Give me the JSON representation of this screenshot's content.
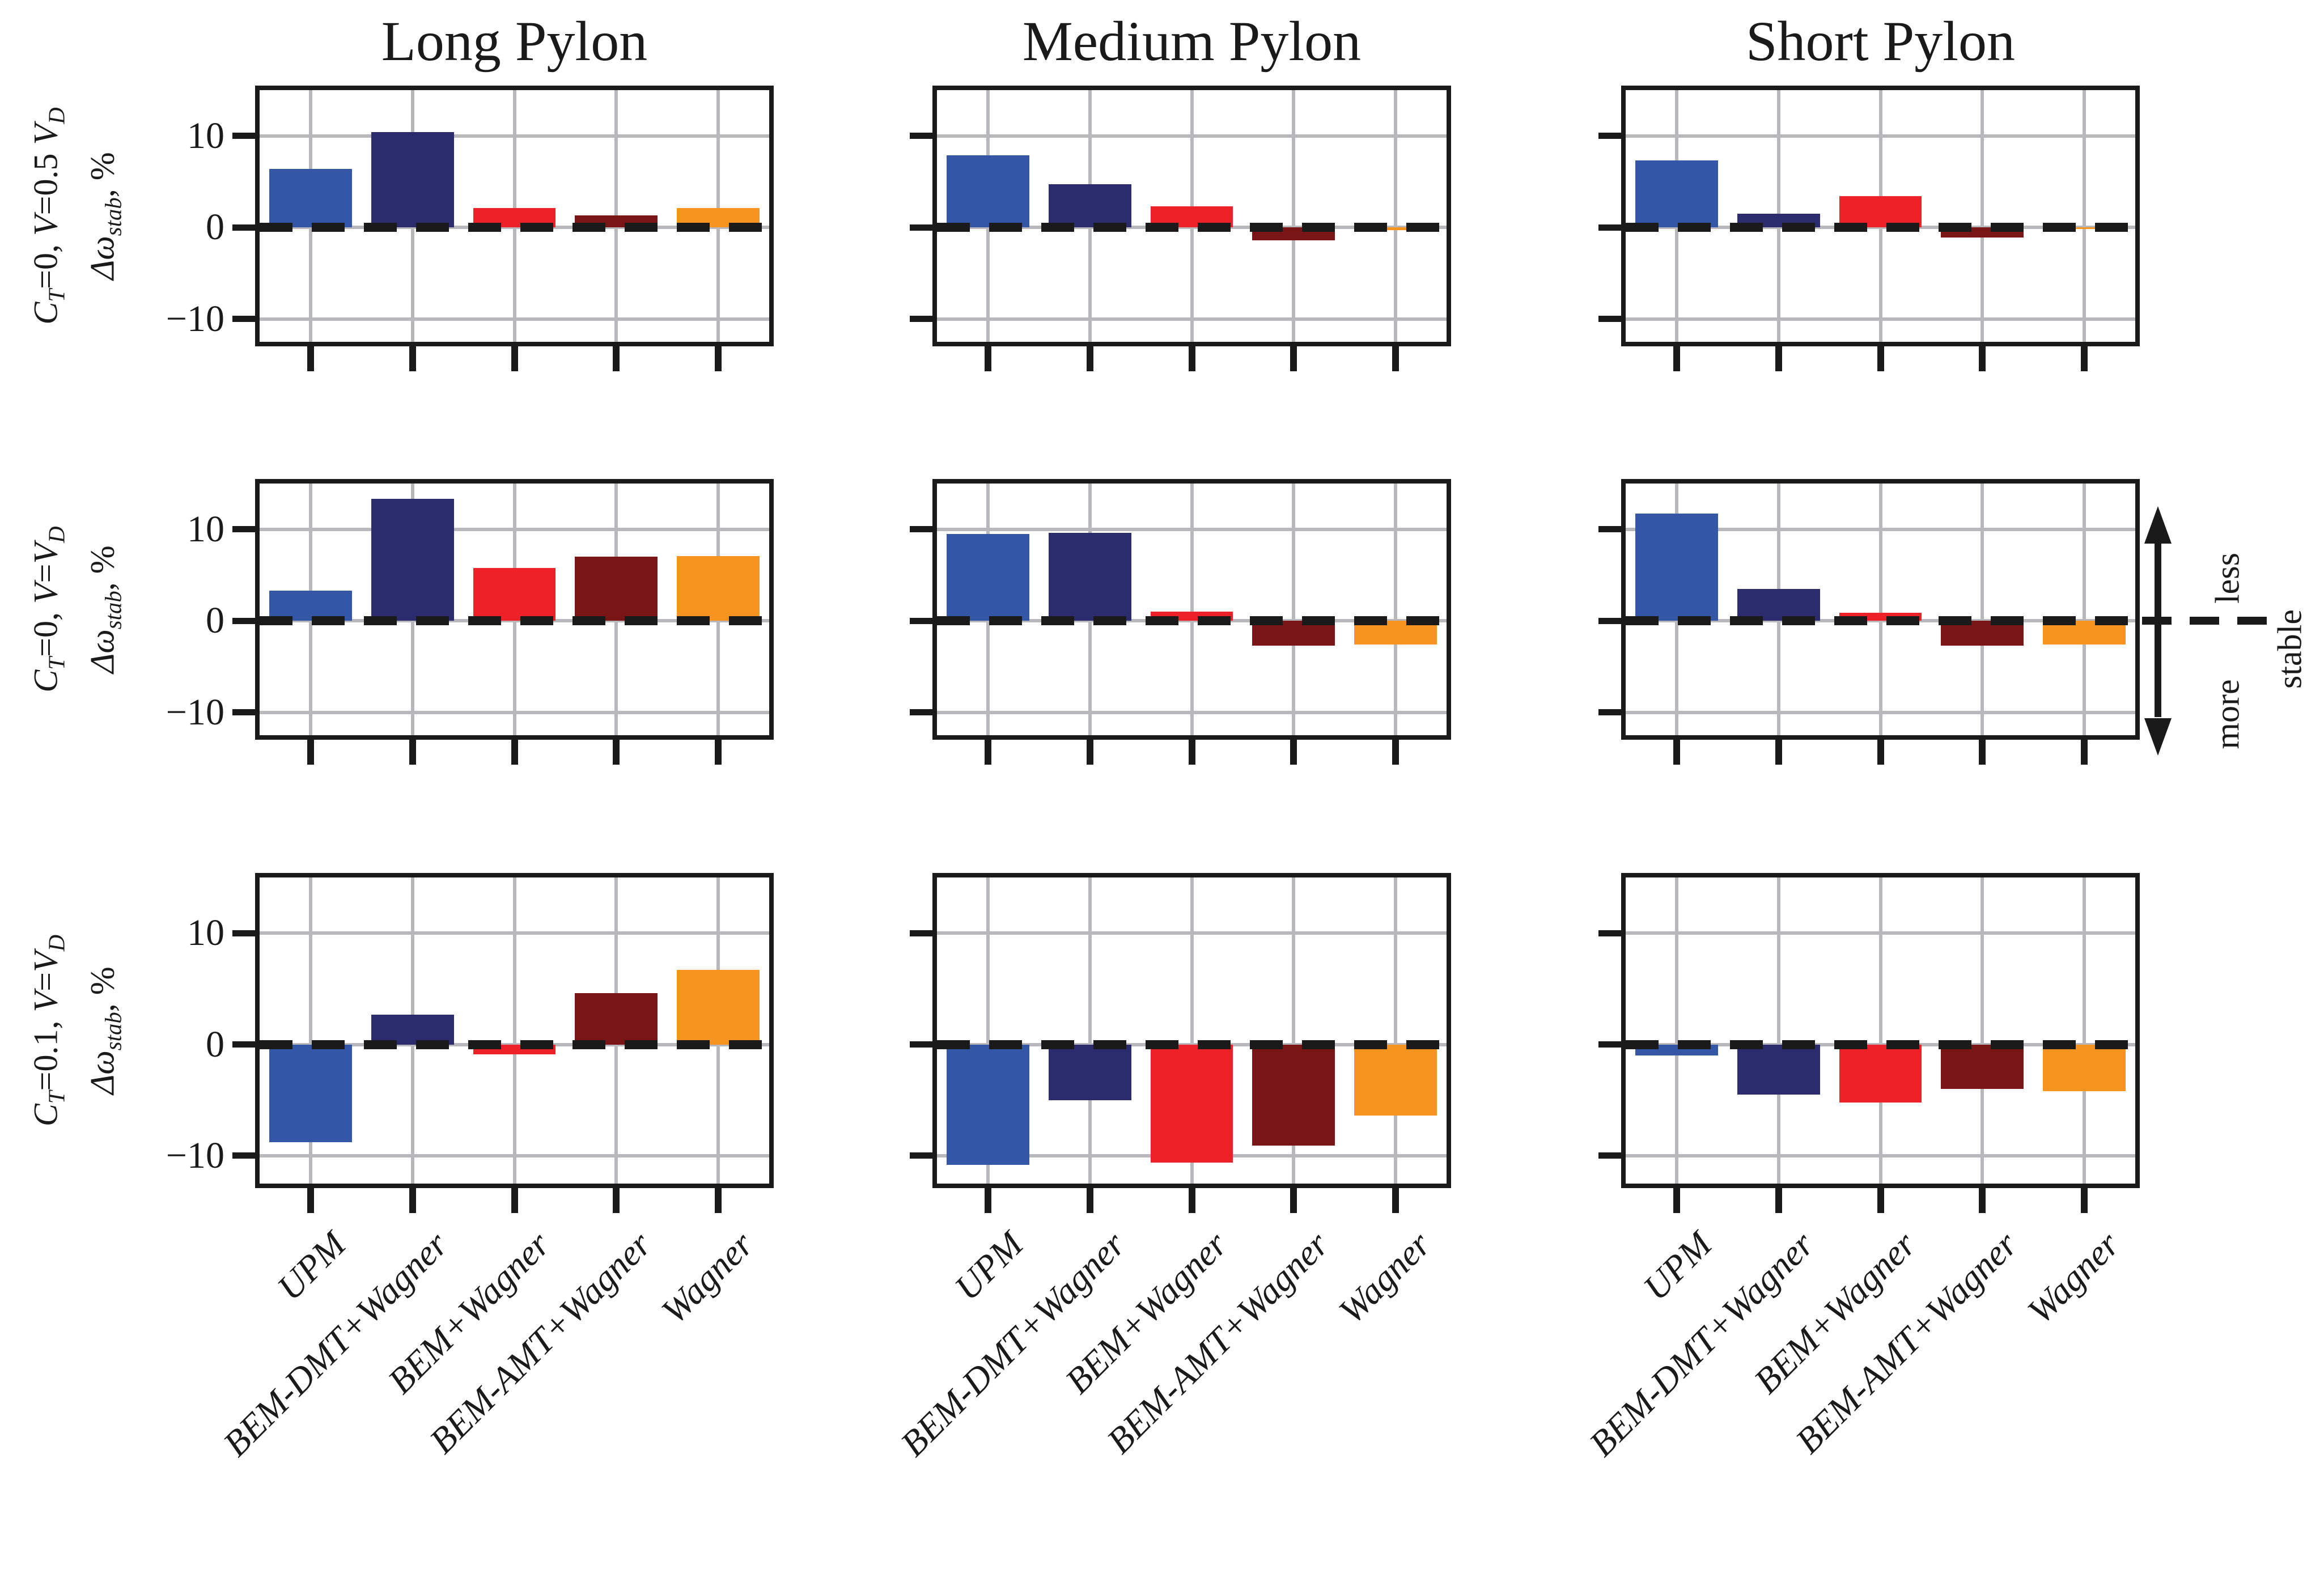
{
  "figure": {
    "column_titles": [
      "Long Pylon",
      "Medium Pylon",
      "Short Pylon"
    ],
    "row_labels": [
      {
        "text": "C_T=0, V=0.5 V_D",
        "segments": [
          {
            "i": "C"
          },
          {
            "sub": "T"
          },
          {
            "t": "=0, "
          },
          {
            "i": "V"
          },
          {
            "t": "=0.5 "
          },
          {
            "i": "V"
          },
          {
            "sub": "D"
          }
        ]
      },
      {
        "text": "C_T=0, V=V_D",
        "segments": [
          {
            "i": "C"
          },
          {
            "sub": "T"
          },
          {
            "t": "=0, "
          },
          {
            "i": "V"
          },
          {
            "t": "="
          },
          {
            "i": "V"
          },
          {
            "sub": "D"
          }
        ]
      },
      {
        "text": "C_T=0.1, V=V_D",
        "segments": [
          {
            "i": "C"
          },
          {
            "sub": "T"
          },
          {
            "t": "=0.1, "
          },
          {
            "i": "V"
          },
          {
            "t": "="
          },
          {
            "i": "V"
          },
          {
            "sub": "D"
          }
        ]
      }
    ],
    "ylabel": {
      "text": "Δω_stab, %",
      "segments": [
        {
          "i": "Δω"
        },
        {
          "sub": "stab"
        },
        {
          "t": ", %"
        }
      ]
    },
    "ytick_labels": [
      "10",
      "0",
      "−10"
    ],
    "annotation": {
      "less": "less",
      "more": "more",
      "stable": "stable"
    }
  },
  "chart_data": {
    "type": "bar",
    "categories": [
      "UPM",
      "BEM-DMT+Wagner",
      "BEM+Wagner",
      "BEM-AMT+Wagner",
      "Wagner"
    ],
    "bar_colors": [
      "#3356A7",
      "#2A2C6E",
      "#EE2129",
      "#7A1516",
      "#F7941F"
    ],
    "grid": true,
    "zero_line": "dashed-black",
    "grid_color": "#b8b8bc",
    "ylim": [
      -12.5,
      15
    ],
    "ytick_values": [
      10,
      0,
      -10
    ],
    "ylabel": "Δω_stab, %",
    "column_titles": [
      "Long Pylon",
      "Medium Pylon",
      "Short Pylon"
    ],
    "row_conditions": [
      "C_T=0, V=0.5 V_D",
      "C_T=0, V=V_D",
      "C_T=0.1, V=V_D"
    ],
    "cells": [
      {
        "row": "C_T=0, V=0.5 V_D",
        "col": "Long Pylon",
        "values": [
          6.4,
          10.4,
          2.1,
          1.3,
          2.1
        ]
      },
      {
        "row": "C_T=0, V=0.5 V_D",
        "col": "Medium Pylon",
        "values": [
          7.9,
          4.7,
          2.3,
          -1.4,
          -0.3
        ]
      },
      {
        "row": "C_T=0, V=0.5 V_D",
        "col": "Short Pylon",
        "values": [
          7.3,
          1.5,
          3.4,
          -1.1,
          -0.2
        ]
      },
      {
        "row": "C_T=0, V=V_D",
        "col": "Long Pylon",
        "values": [
          3.3,
          13.3,
          5.8,
          7.0,
          7.1
        ]
      },
      {
        "row": "C_T=0, V=V_D",
        "col": "Medium Pylon",
        "values": [
          9.5,
          9.6,
          1.0,
          -2.7,
          -2.6
        ]
      },
      {
        "row": "C_T=0, V=V_D",
        "col": "Short Pylon",
        "values": [
          11.7,
          3.5,
          0.9,
          -2.7,
          -2.6
        ]
      },
      {
        "row": "C_T=0.1, V=V_D",
        "col": "Long Pylon",
        "values": [
          -8.8,
          2.7,
          -0.9,
          4.6,
          6.7
        ]
      },
      {
        "row": "C_T=0.1, V=V_D",
        "col": "Medium Pylon",
        "values": [
          -10.8,
          -5.0,
          -10.6,
          -9.1,
          -6.4
        ]
      },
      {
        "row": "C_T=0.1, V=V_D",
        "col": "Short Pylon",
        "values": [
          -1.0,
          -4.5,
          -5.2,
          -4.0,
          -4.2
        ]
      }
    ]
  }
}
